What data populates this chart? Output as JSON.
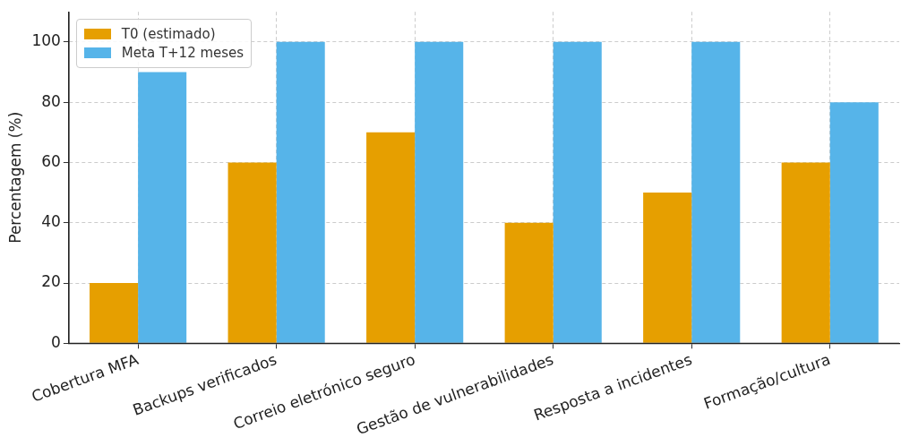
{
  "chart_data": {
    "type": "bar",
    "ylabel": "Percentagem (%)",
    "categories": [
      "Cobertura MFA",
      "Backups verificados",
      "Correio eletrónico seguro",
      "Gestão de vulnerabilidades",
      "Resposta a incidentes",
      "Formação/cultura"
    ],
    "series": [
      {
        "name": "T0 (estimado)",
        "color": "#e69f00",
        "values": [
          20,
          60,
          70,
          40,
          50,
          60
        ]
      },
      {
        "name": "Meta T+12 meses",
        "color": "#56b4e9",
        "values": [
          90,
          100,
          100,
          100,
          100,
          80
        ]
      }
    ],
    "ylim": [
      0,
      110
    ],
    "yticks": [
      0,
      20,
      40,
      60,
      80,
      100
    ],
    "grid": true,
    "legend": "top left"
  }
}
